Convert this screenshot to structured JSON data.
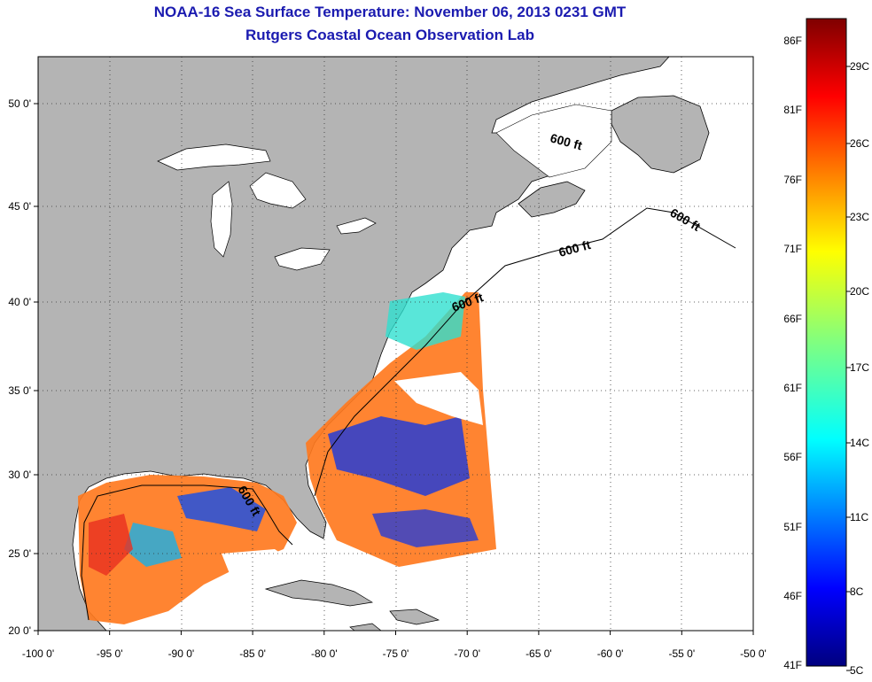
{
  "title": "NOAA-16 Sea Surface Temperature:  November 06, 2013 0231 GMT",
  "subtitle": "Rutgers Coastal Ocean Observation Lab",
  "map": {
    "lon_range": [
      -100,
      -50
    ],
    "lat_range": [
      20,
      52
    ],
    "lon_ticks": [
      -100,
      -95,
      -90,
      -85,
      -80,
      -75,
      -70,
      -65,
      -60,
      -55,
      -50
    ],
    "lon_labels": [
      "-100 0'",
      "-95 0'",
      "-90 0'",
      "-85 0'",
      "-80 0'",
      "-75 0'",
      "-70 0'",
      "-65 0'",
      "-60 0'",
      "-55 0'",
      "-50 0'"
    ],
    "lat_ticks": [
      20,
      25,
      30,
      35,
      40,
      45,
      50
    ],
    "lat_labels": [
      "20 0'",
      "25 0'",
      "30 0'",
      "35 0'",
      "40 0'",
      "45 0'",
      "50 0'"
    ],
    "grid": "dotted",
    "land_color": "#b4b4b4",
    "contour_label": "600 ft"
  },
  "colorbar": {
    "fahrenheit_labels": [
      "86F",
      "81F",
      "76F",
      "71F",
      "66F",
      "61F",
      "56F",
      "51F",
      "46F",
      "41F"
    ],
    "celsius_labels": [
      "29C",
      "26C",
      "23C",
      "20C",
      "17C",
      "14C",
      "11C",
      "8C",
      "5C"
    ],
    "range_c": [
      5,
      31
    ],
    "colormap": "jet"
  }
}
